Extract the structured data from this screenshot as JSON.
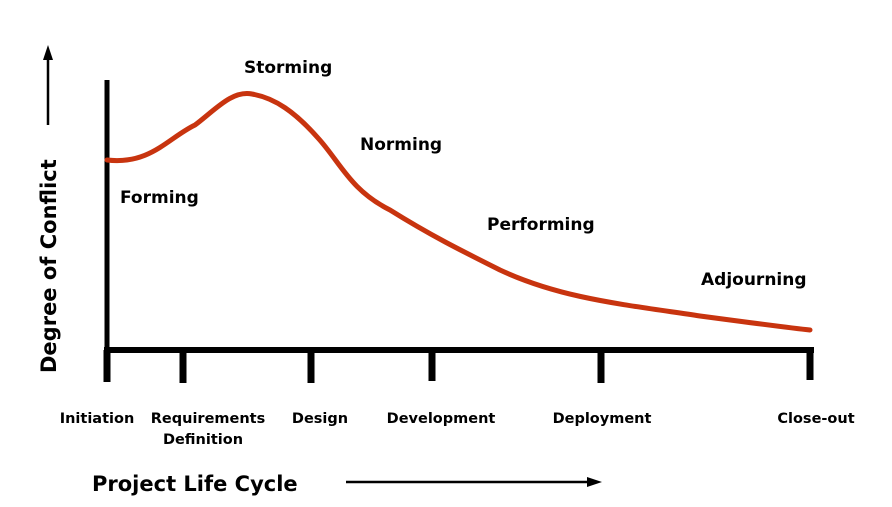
{
  "y_axis_title": "Degree of Conflict",
  "x_axis_title": "Project Life Cycle",
  "stages": [
    "Storming",
    "Forming",
    "Norming",
    "Performing",
    "Adjourning"
  ],
  "phases": [
    {
      "line1": "Initiation",
      "line2": ""
    },
    {
      "line1": "Requirements",
      "line2": "Definition"
    },
    {
      "line1": "Design",
      "line2": ""
    },
    {
      "line1": "Development",
      "line2": ""
    },
    {
      "line1": "Deployment",
      "line2": ""
    },
    {
      "line1": "Close-out",
      "line2": ""
    }
  ],
  "colors": {
    "curve": "#c8340f",
    "axis": "#000000"
  }
}
